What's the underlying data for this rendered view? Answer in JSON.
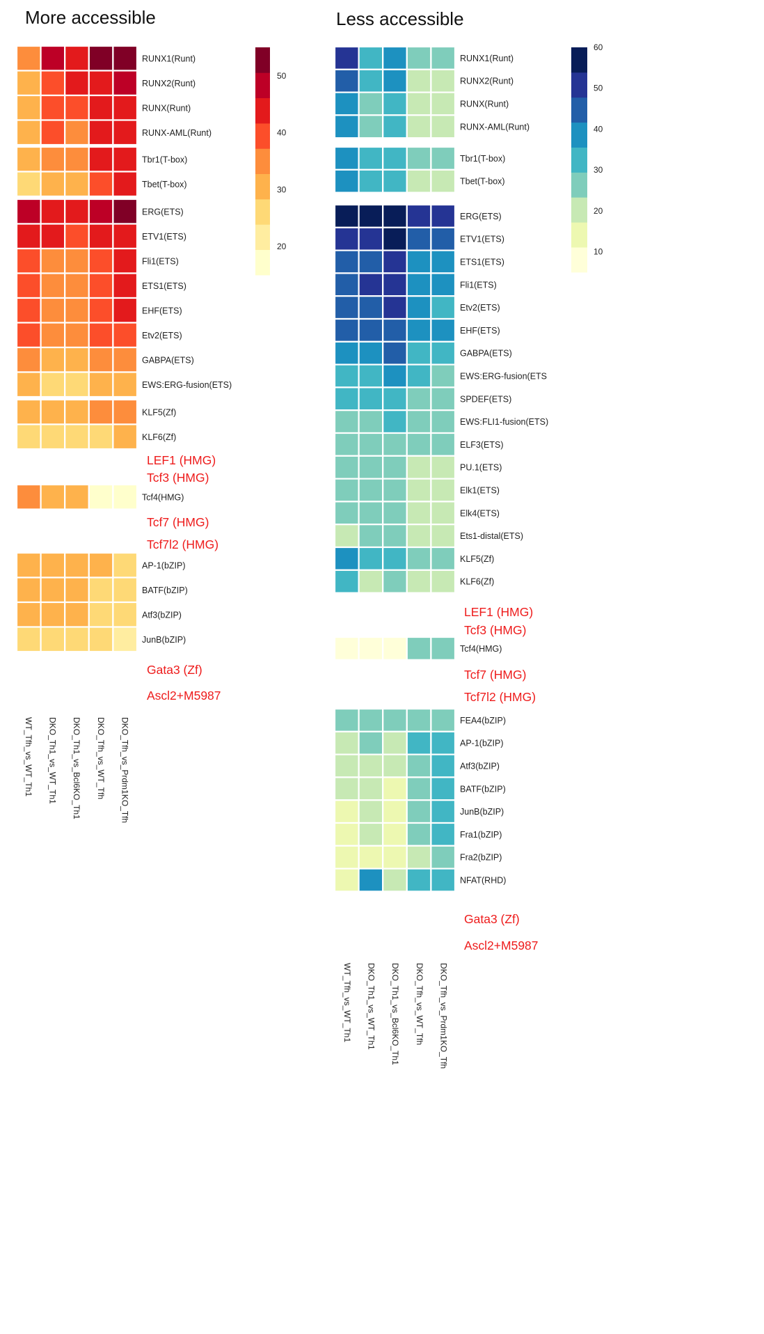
{
  "panels": [
    {
      "title": "More accessible",
      "palette": "YlOrRd",
      "legend_ticks": [
        "50",
        "40",
        "30",
        "20"
      ],
      "legend_range": [
        15,
        55
      ],
      "column_labels": [
        "WT_Tfh_vs_WT_Th1",
        "DKO_Th1_vs_WT_Th1",
        "DKO_Th1_vs_Bcl6KO_Th1",
        "DKO_Tfh_vs_WT_Tfh",
        "DKO_Tfh_vs_Prdm1KO_Tfh"
      ],
      "missing_notes": [
        [
          "LEF1 (HMG)",
          "Tcf3 (HMG)"
        ],
        [
          "Tcf7 (HMG)",
          "Tcf7l2 (HMG)"
        ],
        [
          "Gata3 (Zf)",
          "Ascl2+M5987"
        ]
      ]
    },
    {
      "title": "Less accessible",
      "palette": "YlGnBu",
      "legend_ticks": [
        "60",
        "50",
        "40",
        "30",
        "20",
        "10"
      ],
      "legend_range": [
        5,
        60
      ],
      "column_labels": [
        "WT_Tfh_vs_WT_Th1",
        "DKO_Th1_vs_WT_Th1",
        "DKO_Th1_vs_Bcl6KO_Th1",
        "DKO_Tfh_vs_WT_Tfh",
        "DKO_Tfh_vs_Prdm1KO_Tfh"
      ],
      "missing_notes": [
        [
          "LEF1 (HMG)",
          "Tcf3 (HMG)"
        ],
        [
          "Tcf7 (HMG)",
          "Tcf7l2 (HMG)"
        ],
        [
          "Gata3 (Zf)",
          "Ascl2+M5987"
        ]
      ]
    }
  ],
  "chart_data": [
    {
      "type": "heatmap",
      "title": "More accessible",
      "columns": [
        "WT_Tfh_vs_WT_Th1",
        "DKO_Th1_vs_WT_Th1",
        "DKO_Th1_vs_Bcl6KO_Th1",
        "DKO_Tfh_vs_WT_Tfh",
        "DKO_Tfh_vs_Prdm1KO_Tfh"
      ],
      "colorbar_range": [
        15,
        55
      ],
      "groups": [
        {
          "rows": [
            "RUNX1(Runt)",
            "RUNX2(Runt)",
            "RUNX(Runt)",
            "RUNX-AML(Runt)"
          ],
          "values": [
            [
              33,
              47,
              45,
              53,
              53
            ],
            [
              30,
              41,
              42,
              46,
              47
            ],
            [
              30,
              40,
              41,
              44,
              46
            ],
            [
              30,
              39,
              37,
              43,
              44
            ]
          ]
        },
        {
          "rows": [
            "Tbr1(T-box)",
            "Tbet(T-box)"
          ],
          "values": [
            [
              29,
              34,
              36,
              44,
              45
            ],
            [
              24,
              29,
              30,
              41,
              42
            ]
          ]
        },
        {
          "rows": [
            "ERG(ETS)",
            "ETV1(ETS)",
            "Fli1(ETS)",
            "ETS1(ETS)",
            "EHF(ETS)",
            "Etv2(ETS)",
            "GABPA(ETS)",
            "EWS:ERG-fusion(ETS)"
          ],
          "values": [
            [
              48,
              45,
              45,
              47,
              53
            ],
            [
              44,
              42,
              41,
              44,
              44
            ],
            [
              40,
              37,
              37,
              40,
              42
            ],
            [
              40,
              36,
              37,
              39,
              42
            ],
            [
              41,
              36,
              37,
              40,
              42
            ],
            [
              38,
              36,
              36,
              39,
              40
            ],
            [
              33,
              31,
              31,
              34,
              36
            ],
            [
              30,
              25,
              28,
              30,
              31
            ]
          ]
        },
        {
          "rows": [
            "KLF5(Zf)",
            "KLF6(Zf)"
          ],
          "values": [
            [
              30,
              30,
              30,
              34,
              34
            ],
            [
              25,
              25,
              25,
              25,
              30
            ]
          ]
        },
        {
          "rows": [
            "Tcf4(HMG)"
          ],
          "values": [
            [
              34,
              30,
              30,
              16,
              16
            ]
          ]
        },
        {
          "rows": [
            "AP-1(bZIP)",
            "BATF(bZIP)",
            "Atf3(bZIP)",
            "JunB(bZIP)"
          ],
          "values": [
            [
              30,
              29,
              29,
              29,
              25
            ],
            [
              30,
              30,
              30,
              26,
              24
            ],
            [
              30,
              29,
              29,
              25,
              24
            ],
            [
              25,
              25,
              25,
              25,
              21
            ]
          ]
        }
      ]
    },
    {
      "type": "heatmap",
      "title": "Less accessible",
      "columns": [
        "WT_Tfh_vs_WT_Th1",
        "DKO_Th1_vs_WT_Th1",
        "DKO_Th1_vs_Bcl6KO_Th1",
        "DKO_Tfh_vs_WT_Tfh",
        "DKO_Tfh_vs_Prdm1KO_Tfh"
      ],
      "colorbar_range": [
        5,
        60
      ],
      "groups": [
        {
          "rows": [
            "RUNX1(Runt)",
            "RUNX2(Runt)",
            "RUNX(Runt)",
            "RUNX-AML(Runt)"
          ],
          "values": [
            [
              51,
              33,
              40,
              26,
              26
            ],
            [
              43,
              33,
              37,
              19,
              19
            ],
            [
              38,
              26,
              33,
              19,
              19
            ],
            [
              38,
              26,
              33,
              19,
              19
            ]
          ]
        },
        {
          "rows": [
            "Tbr1(T-box)",
            "Tbet(T-box)"
          ],
          "values": [
            [
              38,
              33,
              33,
              26,
              26
            ],
            [
              38,
              33,
              33,
              19,
              19
            ]
          ]
        },
        {
          "rows": [
            "ERG(ETS)",
            "ETV1(ETS)",
            "ETS1(ETS)",
            "Fli1(ETS)",
            "Etv2(ETS)",
            "EHF(ETS)",
            "GABPA(ETS)",
            "EWS:ERG-fusion(ETS",
            "SPDEF(ETS)",
            "EWS:FLI1-fusion(ETS)",
            "ELF3(ETS)",
            "PU.1(ETS)",
            "Elk1(ETS)",
            "Elk4(ETS)",
            "Ets1-distal(ETS)",
            "KLF5(Zf)",
            "KLF6(Zf)"
          ],
          "values": [
            [
              58,
              58,
              58,
              52,
              52
            ],
            [
              52,
              52,
              58,
              45,
              45
            ],
            [
              45,
              45,
              52,
              38,
              38
            ],
            [
              45,
              52,
              52,
              38,
              38
            ],
            [
              45,
              45,
              52,
              38,
              33
            ],
            [
              45,
              45,
              45,
              38,
              38
            ],
            [
              38,
              38,
              45,
              33,
              33
            ],
            [
              33,
              33,
              38,
              33,
              26
            ],
            [
              33,
              33,
              33,
              26,
              26
            ],
            [
              26,
              26,
              33,
              26,
              26
            ],
            [
              26,
              26,
              26,
              26,
              26
            ],
            [
              26,
              26,
              26,
              19,
              19
            ],
            [
              26,
              26,
              26,
              19,
              19
            ],
            [
              26,
              26,
              26,
              19,
              19
            ],
            [
              19,
              26,
              26,
              19,
              19
            ],
            [
              38,
              33,
              33,
              26,
              26
            ],
            [
              33,
              19,
              26,
              19,
              19
            ]
          ]
        },
        {
          "rows": [
            "Tcf4(HMG)"
          ],
          "values": [
            [
              8,
              8,
              8,
              26,
              26
            ]
          ]
        },
        {
          "rows": [
            "FEA4(bZIP)",
            "AP-1(bZIP)",
            "Atf3(bZIP)",
            "BATF(bZIP)",
            "JunB(bZIP)",
            "Fra1(bZIP)",
            "Fra2(bZIP)",
            "NFAT(RHD)"
          ],
          "values": [
            [
              26,
              26,
              26,
              26,
              26
            ],
            [
              19,
              26,
              19,
              33,
              33
            ],
            [
              19,
              19,
              19,
              26,
              33
            ],
            [
              19,
              19,
              14,
              26,
              33
            ],
            [
              14,
              19,
              14,
              26,
              33
            ],
            [
              14,
              19,
              14,
              26,
              33
            ],
            [
              14,
              14,
              14,
              19,
              26
            ],
            [
              14,
              38,
              19,
              33,
              33
            ]
          ]
        }
      ]
    }
  ]
}
